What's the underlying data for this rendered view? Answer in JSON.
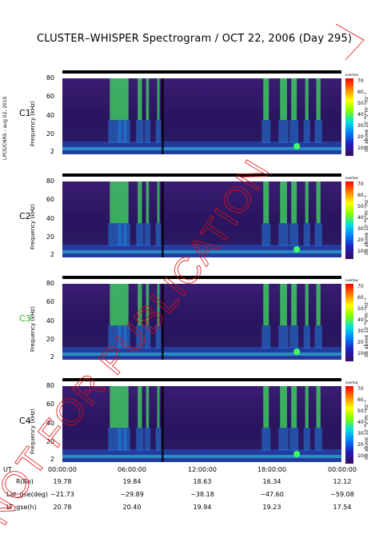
{
  "title": "CLUSTER–WHISPER Spectrogram / OCT 22, 2006 (Day 295)",
  "side_label": "LPCE/CNRS - aug 02, 2010",
  "stamp_text": "NOT FOR PUBLICATION",
  "panels": [
    {
      "spacecraft": "C1",
      "label_color": "#000000"
    },
    {
      "spacecraft": "C2",
      "label_color": "#000000"
    },
    {
      "spacecraft": "C3",
      "label_color": "#22bb22"
    },
    {
      "spacecraft": "C4",
      "label_color": "#000000"
    }
  ],
  "y_axis": {
    "label": "Frequency (kHz)",
    "ticks": [
      "80",
      "60",
      "40",
      "20",
      "2"
    ]
  },
  "colorbar": {
    "unit_top": "overlow",
    "label": "dB above 10⁻⁸V²m⁻²Hz⁻¹",
    "ticks": [
      "70",
      "60",
      "50",
      "40",
      "30",
      "20",
      "10"
    ]
  },
  "x_axis": {
    "label": "UT",
    "ticks": [
      "00:00:00",
      "06:00:00",
      "12:00:00",
      "18:00:00",
      "00:00:00"
    ]
  },
  "ephemeris": [
    {
      "label": "R(Re)",
      "values": [
        "19.78",
        "19.84",
        "18.63",
        "16.34",
        "12.12"
      ]
    },
    {
      "label": "Lat_gse(deg)",
      "values": [
        "−21.73",
        "−29.89",
        "−38.18",
        "−47.60",
        "−59.08"
      ]
    },
    {
      "label": "LT_gse(h)",
      "values": [
        "20.78",
        "20.40",
        "19.94",
        "19.23",
        "17.54"
      ]
    }
  ],
  "chart_data": {
    "type": "heatmap",
    "title": "CLUSTER–WHISPER Spectrogram / OCT 22, 2006 (Day 295)",
    "xlabel": "UT",
    "ylabel": "Frequency (kHz)",
    "ylim": [
      2,
      80
    ],
    "color_range": [
      10,
      70
    ],
    "colorbar_label": "dB above 10⁻⁸V²m⁻²Hz⁻¹",
    "series": [
      {
        "name": "C1"
      },
      {
        "name": "C2"
      },
      {
        "name": "C3"
      },
      {
        "name": "C4"
      }
    ],
    "x_ticks": [
      "00:00:00",
      "06:00:00",
      "12:00:00",
      "18:00:00",
      "00:00:00"
    ]
  }
}
